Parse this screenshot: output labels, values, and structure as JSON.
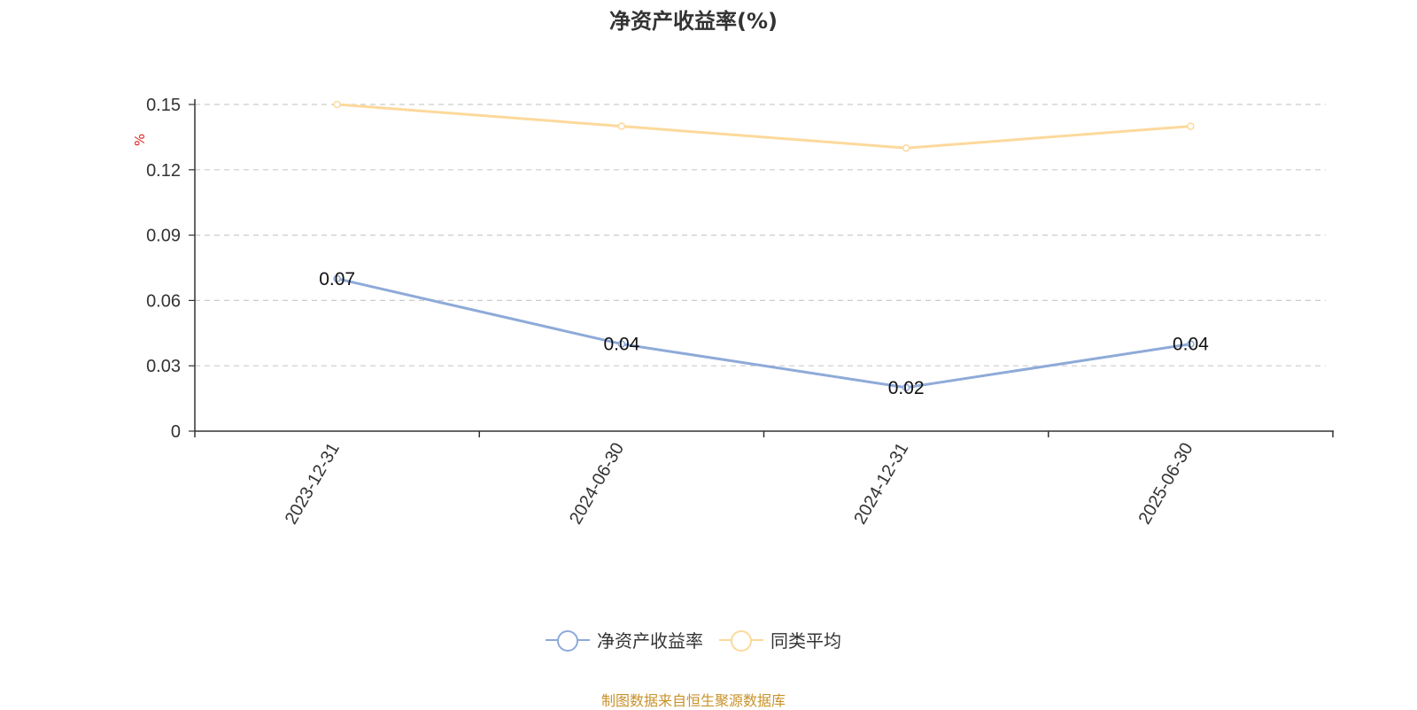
{
  "chart_data": {
    "type": "line",
    "title": "净资产收益率(%)",
    "ylabel": "%",
    "xlabel": "",
    "categories": [
      "2023-12-31",
      "2024-06-30",
      "2024-12-31",
      "2025-06-30"
    ],
    "ylim": [
      0,
      0.15
    ],
    "yticks": [
      "0",
      "0.03",
      "0.06",
      "0.09",
      "0.12",
      "0.15"
    ],
    "grid": true,
    "legend_position": "bottom",
    "series": [
      {
        "name": "净资产收益率",
        "values": [
          0.07,
          0.04,
          0.02,
          0.04
        ],
        "labels": [
          "0.07",
          "0.04",
          "0.02",
          "0.04"
        ],
        "color": "#8eaad8"
      },
      {
        "name": "同类平均",
        "values": [
          0.15,
          0.14,
          0.13,
          0.14
        ],
        "color": "#fcd99b"
      }
    ]
  },
  "source_note": "制图数据来自恒生聚源数据库"
}
